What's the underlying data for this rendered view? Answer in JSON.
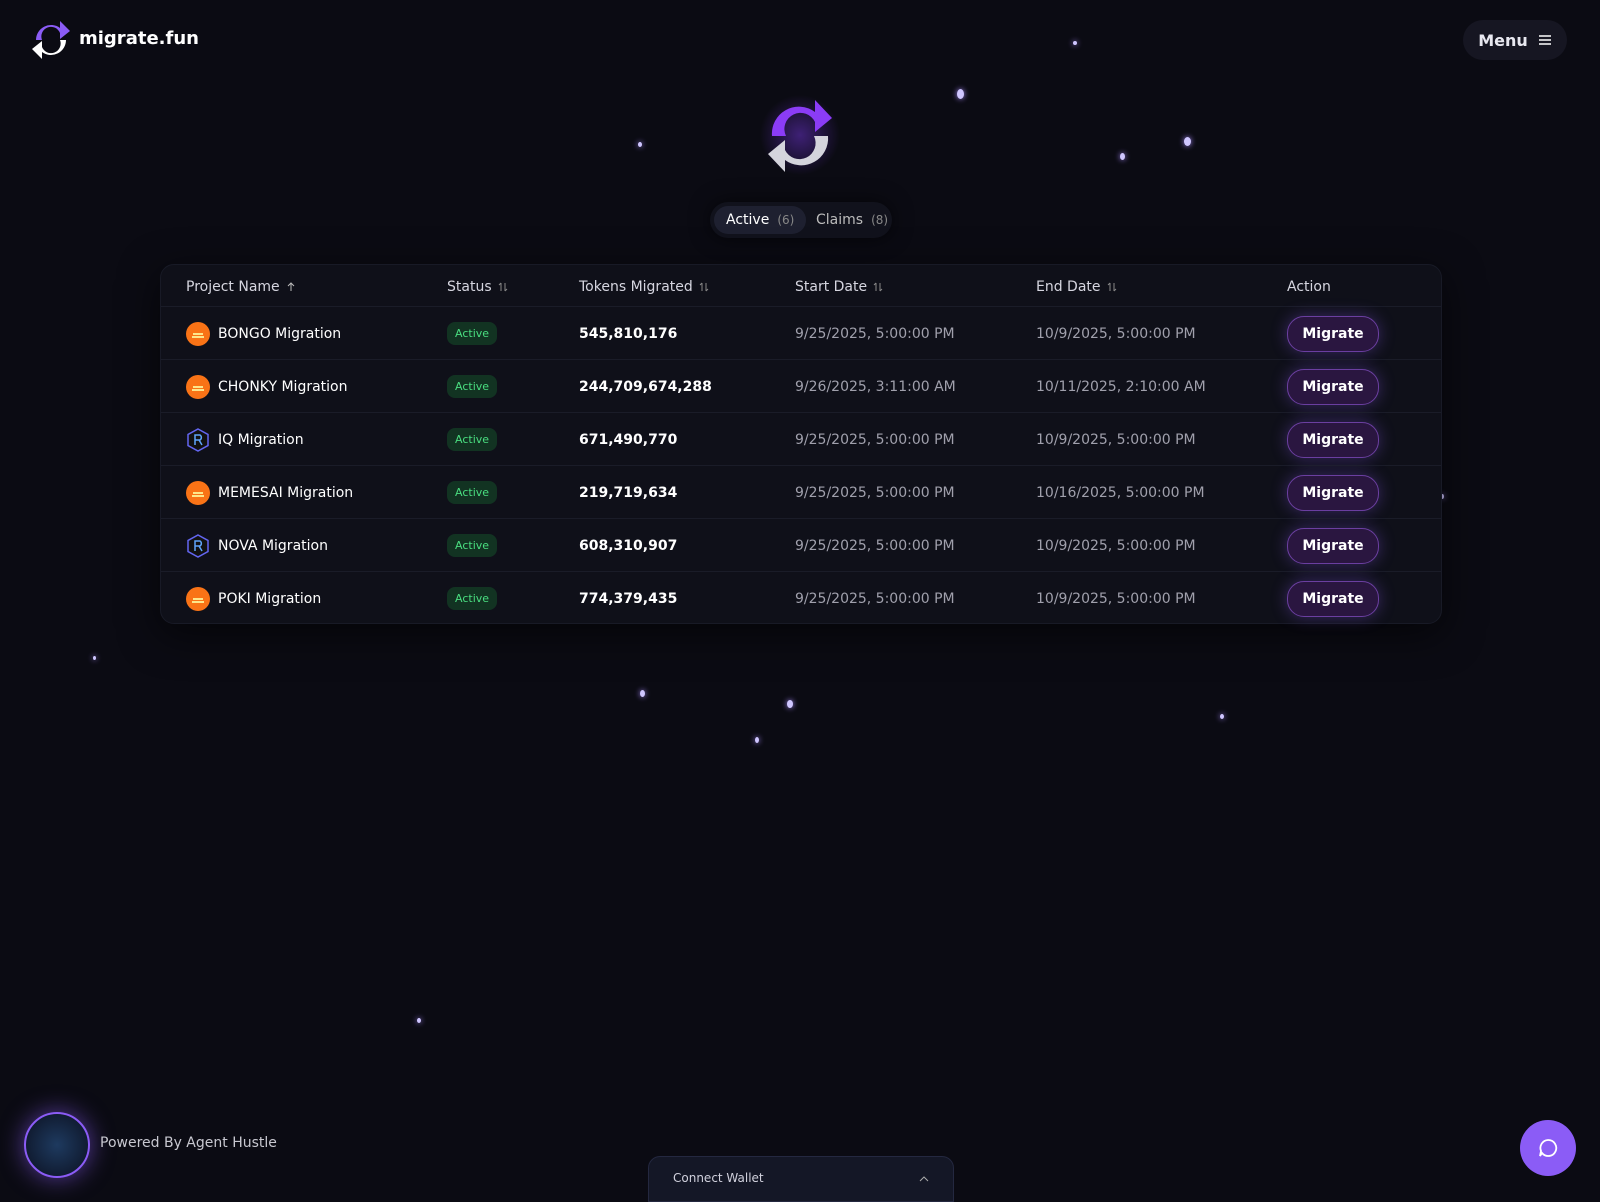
{
  "header": {
    "logo_text": "migrate.fun",
    "menu": "Menu"
  },
  "tabs": [
    {
      "label": "Active",
      "count": "(6)"
    },
    {
      "label": "Claims",
      "count": "(8)"
    }
  ],
  "table": {
    "columns": [
      "Project Name",
      "Status",
      "Tokens Migrated",
      "Start Date",
      "End Date",
      "Action"
    ],
    "rows": [
      [
        "BONGO Migration",
        "Active",
        "545,810,176",
        "9/25/2025, 5:00:00 PM",
        "10/9/2025, 5:00:00 PM",
        "Migrate"
      ],
      [
        "CHONKY Migration",
        "Active",
        "244,709,674,288",
        "9/26/2025, 3:11:00 AM",
        "10/11/2025, 2:10:00 AM",
        "Migrate"
      ],
      [
        "IQ Migration",
        "Active",
        "671,490,770",
        "9/25/2025, 5:00:00 PM",
        "10/9/2025, 5:00:00 PM",
        "Migrate"
      ],
      [
        "MEMESAI Migration",
        "Active",
        "219,719,634",
        "9/25/2025, 5:00:00 PM",
        "10/16/2025, 5:00:00 PM",
        "Migrate"
      ],
      [
        "NOVA Migration",
        "Active",
        "608,310,907",
        "9/25/2025, 5:00:00 PM",
        "10/9/2025, 5:00:00 PM",
        "Migrate"
      ],
      [
        "POKI Migration",
        "Active",
        "774,379,435",
        "9/25/2025, 5:00:00 PM",
        "10/9/2025, 5:00:00 PM",
        "Migrate"
      ]
    ]
  },
  "footer": {
    "powered_by": "Powered By Agent Hustle",
    "wallet": "Connect Wallet"
  }
}
